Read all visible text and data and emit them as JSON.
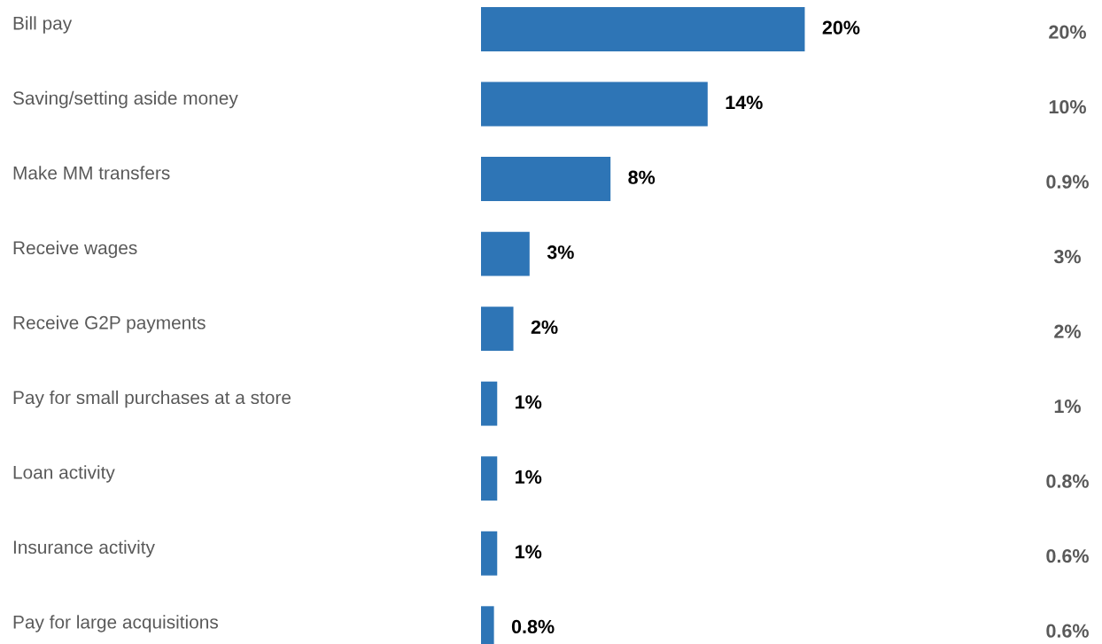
{
  "chart_data": {
    "type": "bar",
    "orientation": "horizontal",
    "categories": [
      "Bill pay",
      "Saving/setting aside money",
      "Make MM transfers",
      "Receive wages",
      "Receive G2P payments",
      "Pay for small purchases at a store",
      "Loan activity",
      "Insurance activity",
      "Pay for large acquisitions"
    ],
    "values": [
      20,
      14,
      8,
      3,
      2,
      1,
      1,
      1,
      0.8
    ],
    "value_labels": [
      "20%",
      "14%",
      "8%",
      "3%",
      "2%",
      "1%",
      "1%",
      "1%",
      "0.8%"
    ],
    "color": "#2e75b6",
    "annotations": [
      "20%",
      "10%",
      "0.9%",
      "3%",
      "2%",
      "1%",
      "0.8%",
      "0.6%",
      "0.6%"
    ],
    "grid": false,
    "legend": false
  }
}
